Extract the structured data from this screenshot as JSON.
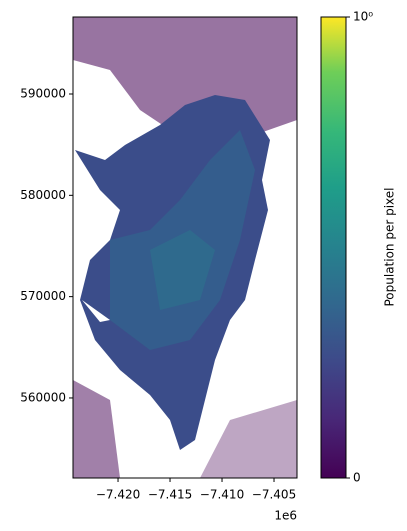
{
  "chart_data": {
    "type": "raster",
    "colorbar_label": "Population per pixel",
    "colormap": "viridis",
    "clim": [
      0,
      1
    ],
    "cticks": [
      {
        "value": 0,
        "label": "0"
      },
      {
        "value": 1,
        "label": "10⁰"
      }
    ],
    "xlim": [
      -7424330,
      -7402790
    ],
    "xticks": [
      {
        "value": -7420000,
        "label": "−7.420"
      },
      {
        "value": -7415000,
        "label": "−7.415"
      },
      {
        "value": -7410000,
        "label": "−7.410"
      },
      {
        "value": -7405000,
        "label": "−7.405"
      }
    ],
    "x_offset_label": "1e6",
    "ylim": [
      552100,
      597600
    ],
    "yticks": [
      560000,
      570000,
      580000,
      590000
    ],
    "grid": false
  }
}
